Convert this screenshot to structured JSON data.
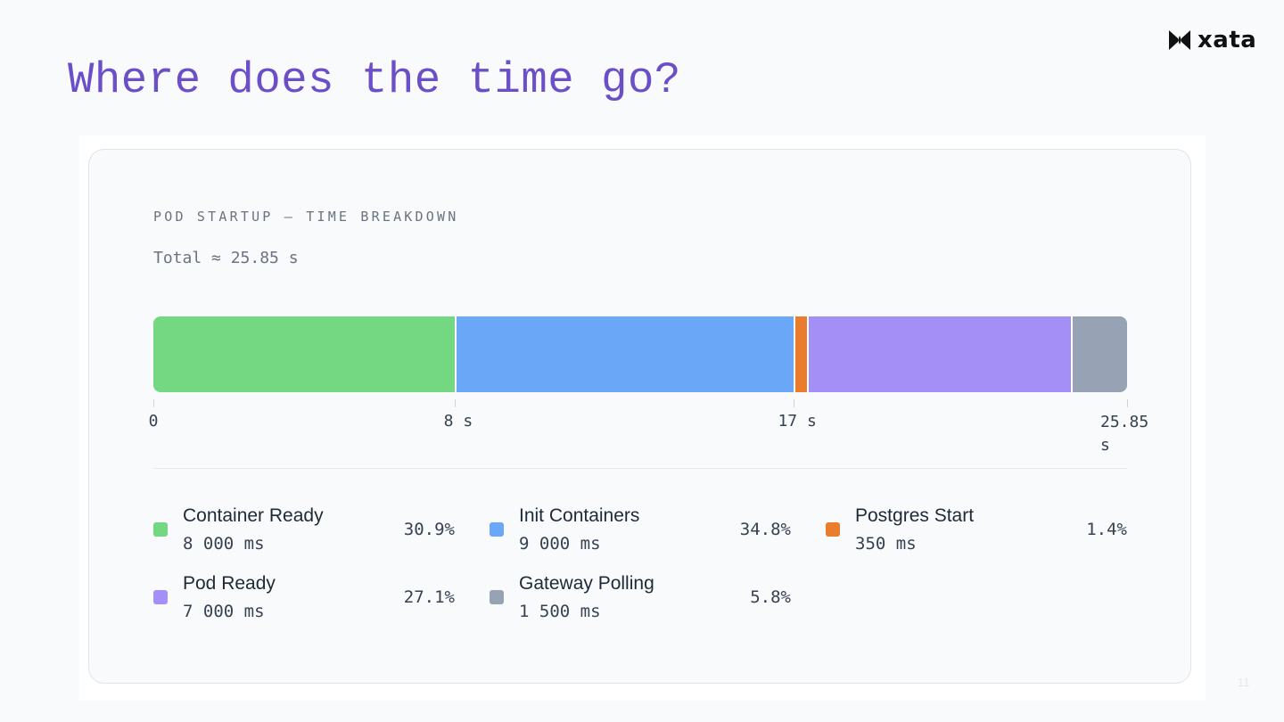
{
  "slide": {
    "title": "Where does the time go?",
    "logo_text": "xata",
    "page_number": "11"
  },
  "chart_data": {
    "type": "bar",
    "orientation": "horizontal-stacked",
    "title": "POD STARTUP — TIME BREAKDOWN",
    "subtitle": "Total ≈ 25.85 s",
    "total_ms": 25850,
    "xlim": [
      0,
      25850
    ],
    "ticks": [
      {
        "value": 0,
        "label": "0"
      },
      {
        "value": 8000,
        "label": "8 s"
      },
      {
        "value": 17000,
        "label": "17 s"
      },
      {
        "value": 25850,
        "label": "25.85 s"
      }
    ],
    "grid": false,
    "legend_position": "bottom",
    "series": [
      {
        "name": "Container Ready",
        "value": 8000,
        "value_label": "8 000 ms",
        "percent": "30.9%",
        "color": "#74d883"
      },
      {
        "name": "Init Containers",
        "value": 9000,
        "value_label": "9 000 ms",
        "percent": "34.8%",
        "color": "#6aa8f7"
      },
      {
        "name": "Postgres Start",
        "value": 350,
        "value_label": "350 ms",
        "percent": "1.4%",
        "color": "#ea7d2d"
      },
      {
        "name": "Pod Ready",
        "value": 7000,
        "value_label": "7 000 ms",
        "percent": "27.1%",
        "color": "#a48ff6"
      },
      {
        "name": "Gateway Polling",
        "value": 1500,
        "value_label": "1 500 ms",
        "percent": "5.8%",
        "color": "#97a3b4"
      }
    ]
  }
}
